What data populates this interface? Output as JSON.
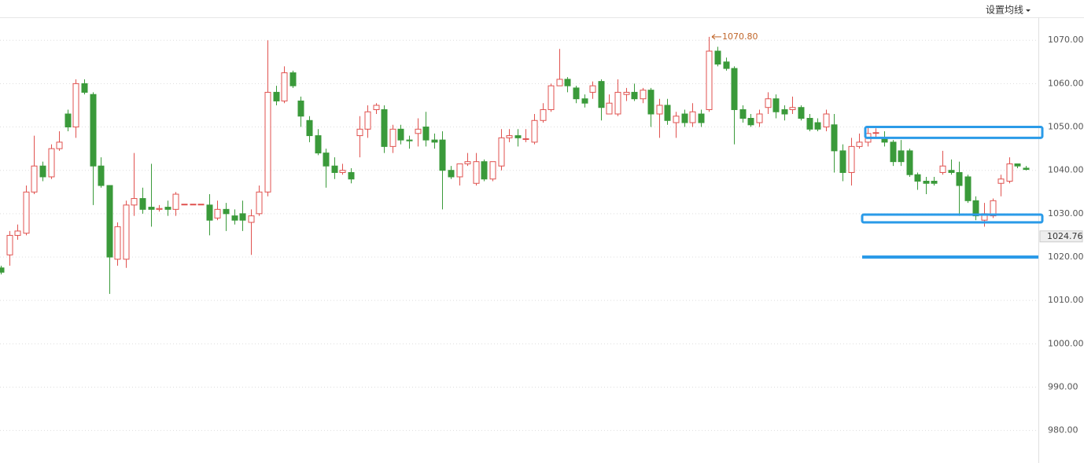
{
  "header": {
    "button": "设置均线"
  },
  "chart_data": {
    "type": "candlestick",
    "open": [
      1017.5,
      1020.5,
      1025,
      1025.5,
      1035,
      1041,
      1038.5,
      1045,
      1053,
      1050,
      1060,
      1057.5,
      1041,
      1036.5,
      1019.5,
      1019.5,
      1032,
      1033.5,
      1031.5,
      1031,
      1031.5,
      1031,
      1032.2,
      1032.2,
      1032.2,
      1032,
      1029,
      1031,
      1029.5,
      1030,
      1028,
      1030,
      1035,
      1058,
      1056,
      1062.5,
      1056,
      1051.5,
      1048,
      1044,
      1041,
      1039.5,
      1039.5,
      1048,
      1049.5,
      1054,
      1054,
      1045.5,
      1049.5,
      1047,
      1048.5,
      1050,
      1047,
      1047,
      1040,
      1038.5,
      1041.5,
      1037,
      1042,
      1038,
      1041,
      1047.5,
      1048,
      1047.2,
      1046.5,
      1051.5,
      1054,
      1059.5,
      1061,
      1059,
      1056.5,
      1058,
      1060.5,
      1053,
      1053,
      1057.5,
      1058,
      1056.5,
      1058.5,
      1053,
      1055,
      1051,
      1053,
      1051,
      1053,
      1054,
      1067.5,
      1065,
      1063.5,
      1054,
      1052,
      1051,
      1054.5,
      1056.5,
      1054,
      1054,
      1054.5,
      1052,
      1051,
      1050,
      1050.5,
      1044.5,
      1039.5,
      1045.5,
      1046.5,
      1048.6,
      1047.5,
      1046.5,
      1044.5,
      1044.5,
      1039,
      1037.5,
      1037.5,
      1039.5,
      1040,
      1039.5,
      1038.5,
      1033,
      1028.5,
      1029.5,
      1037,
      1037.5,
      1041.5,
      1040.5
    ],
    "high": [
      1018,
      1026,
      1027.5,
      1036.5,
      1048,
      1042,
      1046,
      1049,
      1054,
      1061,
      1061,
      1058,
      1043,
      1036.5,
      1028,
      1033,
      1044,
      1036,
      1041.5,
      1032,
      1033,
      1035,
      1032.2,
      1032.2,
      1032.2,
      1034.5,
      1033,
      1032.5,
      1031,
      1033,
      1031,
      1036.5,
      1070,
      1059.5,
      1064,
      1063,
      1057,
      1052.5,
      1049.5,
      1045,
      1043,
      1041.5,
      1040.5,
      1052.5,
      1055,
      1055.5,
      1055,
      1050.5,
      1050.5,
      1048,
      1052,
      1053.5,
      1048.5,
      1049,
      1041,
      1041.5,
      1044,
      1044,
      1042.5,
      1042,
      1049.5,
      1049.5,
      1049.5,
      1049.5,
      1053,
      1055.5,
      1060,
      1068,
      1061.5,
      1059.5,
      1057.5,
      1060.5,
      1061,
      1057.5,
      1061,
      1059,
      1060,
      1059,
      1059,
      1056.5,
      1056.5,
      1053.5,
      1054,
      1055.5,
      1054,
      1070.8,
      1068.5,
      1066,
      1064,
      1055,
      1053,
      1054,
      1058,
      1057.5,
      1055,
      1057,
      1055,
      1053,
      1052,
      1054,
      1053,
      1046,
      1047.5,
      1048.5,
      1050,
      1049.7,
      1049,
      1047,
      1047,
      1045,
      1039.5,
      1038.5,
      1038.5,
      1044.5,
      1042.5,
      1042,
      1039,
      1034,
      1032.5,
      1033.5,
      1039,
      1043,
      1041.5,
      1041
    ],
    "low": [
      1016,
      1018,
      1024,
      1025,
      1034.5,
      1037.5,
      1038,
      1044.5,
      1049,
      1047.5,
      1057.5,
      1032,
      1036,
      1011.5,
      1018,
      1017.5,
      1029.5,
      1030,
      1027,
      1030.5,
      1029.5,
      1029.5,
      1032.2,
      1032.2,
      1032.2,
      1025,
      1028.5,
      1026,
      1027.5,
      1026,
      1020.5,
      1029.5,
      1034,
      1055,
      1055.5,
      1059,
      1050,
      1046.5,
      1043.5,
      1036,
      1038,
      1039,
      1037,
      1043,
      1047.5,
      1053,
      1044,
      1044,
      1046,
      1045,
      1045.5,
      1045.5,
      1045,
      1031,
      1038,
      1036.5,
      1041,
      1036.5,
      1037.5,
      1037.5,
      1040,
      1046.5,
      1045.5,
      1046.5,
      1046,
      1051,
      1053.5,
      1059.5,
      1058,
      1055.5,
      1054.5,
      1056.5,
      1051.5,
      1053,
      1052.5,
      1056,
      1056,
      1055.5,
      1050,
      1047.5,
      1050.5,
      1047.5,
      1050,
      1050,
      1050,
      1053.5,
      1064,
      1063,
      1046,
      1051,
      1050,
      1050,
      1053,
      1052,
      1051.5,
      1053,
      1051.5,
      1049,
      1049,
      1049,
      1039.5,
      1037.5,
      1036.5,
      1045,
      1045.5,
      1047.5,
      1045.5,
      1041,
      1041,
      1038.5,
      1035.5,
      1034.5,
      1036.5,
      1039,
      1039,
      1029.5,
      1032.5,
      1028.5,
      1027,
      1029,
      1034,
      1037,
      1040.5,
      1040
    ],
    "close": [
      1016.5,
      1025,
      1026,
      1035,
      1041,
      1038.5,
      1045,
      1046.5,
      1050,
      1060,
      1058,
      1041,
      1036.5,
      1020,
      1027,
      1032,
      1033.5,
      1031,
      1031,
      1031.2,
      1031,
      1034.5,
      1032.2,
      1032.2,
      1032.2,
      1028.5,
      1031,
      1030,
      1028.5,
      1028.5,
      1029.5,
      1035,
      1058,
      1056,
      1062.5,
      1059.5,
      1052.5,
      1048,
      1044,
      1041,
      1039.5,
      1040,
      1038,
      1049.5,
      1053.5,
      1055,
      1045.5,
      1049.5,
      1047,
      1046.8,
      1049.5,
      1047,
      1046.5,
      1040,
      1038.5,
      1041.5,
      1042,
      1042,
      1038,
      1042,
      1047.5,
      1048,
      1047.5,
      1047.3,
      1051.5,
      1054,
      1059.5,
      1061,
      1059.5,
      1056.5,
      1055.5,
      1059.5,
      1054.5,
      1055.5,
      1058,
      1058,
      1056.5,
      1058.5,
      1053,
      1055,
      1051.5,
      1052.5,
      1051,
      1053.5,
      1051,
      1067.5,
      1064.5,
      1063.5,
      1054,
      1052,
      1050.5,
      1053,
      1056.5,
      1053.5,
      1053,
      1054.5,
      1052,
      1049.5,
      1049.5,
      1053,
      1044.5,
      1039.5,
      1045.5,
      1046.5,
      1048.5,
      1048.7,
      1046.5,
      1042,
      1042,
      1039,
      1037.5,
      1037,
      1037,
      1041,
      1039.5,
      1036.5,
      1033,
      1029.5,
      1030,
      1033,
      1038,
      1041.5,
      1041,
      1040.2
    ],
    "up_color": "#e0524f",
    "down_color": "#3a9a3a",
    "ylim": [
      972.5,
      1075.3
    ],
    "yticks": [
      {
        "value": 980,
        "label": "980.00"
      },
      {
        "value": 990,
        "label": "990.00"
      },
      {
        "value": 1000,
        "label": "1000.00"
      },
      {
        "value": 1010,
        "label": "1010.00"
      },
      {
        "value": 1020,
        "label": "1020.00"
      },
      {
        "value": 1030,
        "label": "1030.00"
      },
      {
        "value": 1040,
        "label": "1040.00"
      },
      {
        "value": 1050,
        "label": "1050.00"
      },
      {
        "value": 1060,
        "label": "1060.00"
      },
      {
        "value": 1070,
        "label": "1070.00"
      }
    ],
    "grid": true,
    "max_marker": {
      "value": 1070.8,
      "label": "1070.80"
    },
    "last_price": {
      "value": 1024.76,
      "label": "1024.76"
    },
    "drawn_levels": [
      {
        "low": 1047.5,
        "high": 1050
      },
      {
        "low": 1028,
        "high": 1029.8
      },
      {
        "low": 1020,
        "high": 1020
      }
    ],
    "level_color": "#2b9be8"
  }
}
